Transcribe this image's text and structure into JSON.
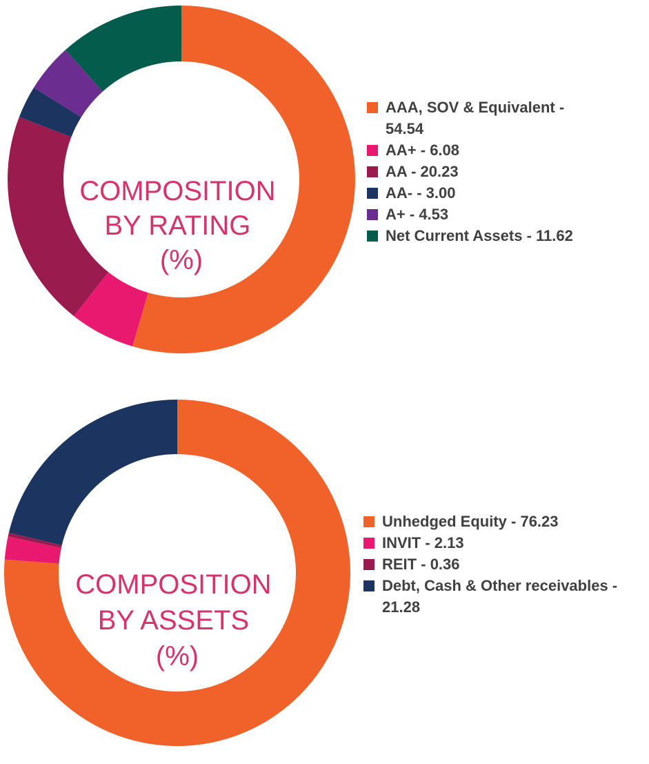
{
  "chart_data": [
    {
      "type": "pie",
      "title": "COMPOSITION BY RATING (%)",
      "title_lines": [
        "COMPOSITION",
        "BY RATING",
        "(%)"
      ],
      "legend_position": "right",
      "slices": [
        {
          "label": "AAA, SOV & Equivalent",
          "value": 54.54,
          "color": "#f0622a",
          "display": "54.54"
        },
        {
          "label": "AA+",
          "value": 6.08,
          "color": "#e8196e",
          "display": "6.08"
        },
        {
          "label": "AA",
          "value": 20.23,
          "color": "#9a1c4e",
          "display": "20.23"
        },
        {
          "label": "AA-",
          "value": 3.0,
          "color": "#1c3560",
          "display": "3.00"
        },
        {
          "label": "A+",
          "value": 4.53,
          "color": "#6b2d8f",
          "display": "4.53"
        },
        {
          "label": "Net Current Assets",
          "value": 11.62,
          "color": "#045c4c",
          "display": "11.62"
        }
      ]
    },
    {
      "type": "pie",
      "title": "COMPOSITION BY ASSETS (%)",
      "title_lines": [
        "COMPOSITION",
        "BY ASSETS",
        "(%)"
      ],
      "legend_position": "right",
      "slices": [
        {
          "label": "Unhedged Equity",
          "value": 76.23,
          "color": "#f0622a",
          "display": "76.23"
        },
        {
          "label": "INVIT",
          "value": 2.13,
          "color": "#e8196e",
          "display": "2.13"
        },
        {
          "label": "REIT",
          "value": 0.36,
          "color": "#9a1c4e",
          "display": "0.36"
        },
        {
          "label": "Debt, Cash & Other receivables",
          "value": 21.28,
          "color": "#1c3560",
          "display": "21.28"
        }
      ]
    }
  ]
}
